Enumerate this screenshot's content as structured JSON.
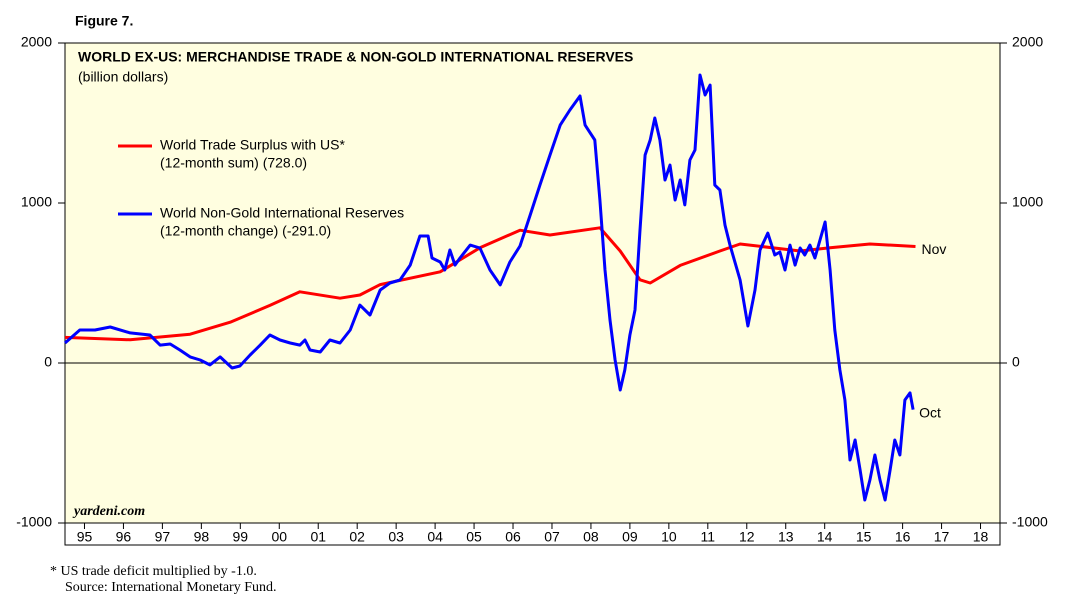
{
  "figure_label": "Figure 7.",
  "footnotes": [
    "*  US trade deficit multiplied by -1.0.",
    "Source: International Monetary Fund."
  ],
  "chart_data": {
    "type": "line",
    "title": "WORLD EX-US: MERCHANDISE TRADE & NON-GOLD INTERNATIONAL RESERVES",
    "subtitle": "(billion dollars)",
    "watermark": "yardeni.com",
    "xlim": [
      1995,
      2019
    ],
    "xticks": [
      {
        "value": 1995.5,
        "label": "95"
      },
      {
        "value": 1996.5,
        "label": "96"
      },
      {
        "value": 1997.5,
        "label": "97"
      },
      {
        "value": 1998.5,
        "label": "98"
      },
      {
        "value": 1999.5,
        "label": "99"
      },
      {
        "value": 2000.5,
        "label": "00"
      },
      {
        "value": 2001.5,
        "label": "01"
      },
      {
        "value": 2002.5,
        "label": "02"
      },
      {
        "value": 2003.5,
        "label": "03"
      },
      {
        "value": 2004.5,
        "label": "04"
      },
      {
        "value": 2005.5,
        "label": "05"
      },
      {
        "value": 2006.5,
        "label": "06"
      },
      {
        "value": 2007.5,
        "label": "07"
      },
      {
        "value": 2008.5,
        "label": "08"
      },
      {
        "value": 2009.5,
        "label": "09"
      },
      {
        "value": 2010.5,
        "label": "10"
      },
      {
        "value": 2011.5,
        "label": "11"
      },
      {
        "value": 2012.5,
        "label": "12"
      },
      {
        "value": 2013.5,
        "label": "13"
      },
      {
        "value": 2014.5,
        "label": "14"
      },
      {
        "value": 2015.5,
        "label": "15"
      },
      {
        "value": 2016.5,
        "label": "16"
      },
      {
        "value": 2017.5,
        "label": "17"
      },
      {
        "value": 2018.5,
        "label": "18"
      }
    ],
    "ylim": [
      -1000,
      2000
    ],
    "yticks": [
      -1000,
      0,
      1000,
      2000
    ],
    "y2lim": [
      -1000,
      2000
    ],
    "y2ticks": [
      -1000,
      0,
      1000,
      2000
    ],
    "zero_line": true,
    "series": [
      {
        "name": "World Trade Surplus with US*",
        "detail": "(12-month sum) (728.0)",
        "end_label": "Nov",
        "color": "#ff0000",
        "x": [
          1995.0,
          1996.67,
          1998.21,
          1999.24,
          2000.26,
          2001.03,
          2002.06,
          2002.57,
          2003.09,
          2004.63,
          2005.65,
          2006.68,
          2007.45,
          2008.73,
          2009.25,
          2009.76,
          2010.02,
          2010.79,
          2011.81,
          2012.33,
          2013.87,
          2014.64,
          2015.66,
          2016.83
        ],
        "values": [
          160,
          145,
          180,
          255,
          360,
          445,
          405,
          425,
          490,
          570,
          720,
          830,
          800,
          845,
          700,
          520,
          500,
          610,
          700,
          744,
          700,
          720,
          744,
          728
        ]
      },
      {
        "name": "World Non-Gold International Reserves",
        "detail": "(12-month change) (-291.0)",
        "end_label": "Oct",
        "color": "#0000ff",
        "x": [
          1995.0,
          1995.38,
          1995.77,
          1996.16,
          1996.67,
          1997.18,
          1997.44,
          1997.7,
          1997.95,
          1998.21,
          1998.47,
          1998.72,
          1998.98,
          1999.29,
          1999.49,
          1999.75,
          2000.01,
          2000.26,
          2000.52,
          2000.78,
          2001.03,
          2001.16,
          2001.29,
          2001.55,
          2001.8,
          2002.06,
          2002.32,
          2002.57,
          2002.83,
          2003.09,
          2003.34,
          2003.6,
          2003.86,
          2004.11,
          2004.32,
          2004.42,
          2004.63,
          2004.75,
          2004.88,
          2005.01,
          2005.14,
          2005.4,
          2005.65,
          2005.91,
          2006.17,
          2006.42,
          2006.68,
          2006.94,
          2007.19,
          2007.45,
          2007.71,
          2007.96,
          2008.22,
          2008.35,
          2008.6,
          2008.73,
          2008.86,
          2008.99,
          2009.12,
          2009.25,
          2009.37,
          2009.5,
          2009.63,
          2009.76,
          2009.89,
          2010.02,
          2010.14,
          2010.27,
          2010.4,
          2010.53,
          2010.66,
          2010.79,
          2010.91,
          2011.04,
          2011.17,
          2011.3,
          2011.43,
          2011.56,
          2011.68,
          2011.81,
          2011.94,
          2012.07,
          2012.33,
          2012.53,
          2012.71,
          2012.84,
          2013.04,
          2013.22,
          2013.35,
          2013.48,
          2013.61,
          2013.74,
          2013.87,
          2013.99,
          2014.12,
          2014.25,
          2014.38,
          2014.51,
          2014.64,
          2014.76,
          2014.89,
          2015.02,
          2015.15,
          2015.28,
          2015.41,
          2015.53,
          2015.66,
          2015.79,
          2015.92,
          2016.05,
          2016.18,
          2016.3,
          2016.43,
          2016.56,
          2016.69,
          2016.77
        ],
        "values": [
          125,
          206,
          206,
          225,
          188,
          175,
          112,
          119,
          81,
          38,
          19,
          -12,
          38,
          -31,
          -19,
          50,
          112,
          175,
          144,
          125,
          112,
          144,
          81,
          69,
          144,
          125,
          206,
          362,
          300,
          456,
          500,
          519,
          612,
          794,
          794,
          656,
          631,
          581,
          706,
          612,
          656,
          737,
          719,
          581,
          488,
          631,
          731,
          925,
          1112,
          1300,
          1487,
          1581,
          1669,
          1487,
          1394,
          1019,
          581,
          269,
          19,
          -169,
          -44,
          175,
          331,
          831,
          1300,
          1394,
          1531,
          1394,
          1144,
          1237,
          1019,
          1144,
          988,
          1269,
          1331,
          1800,
          1675,
          1737,
          1112,
          1081,
          862,
          737,
          519,
          231,
          456,
          706,
          812,
          675,
          694,
          581,
          737,
          612,
          719,
          675,
          737,
          656,
          769,
          881,
          581,
          206,
          -44,
          -231,
          -606,
          -481,
          -669,
          -856,
          -731,
          -575,
          -731,
          -856,
          -669,
          -481,
          -575,
          -231,
          -187,
          -291
        ]
      }
    ]
  }
}
